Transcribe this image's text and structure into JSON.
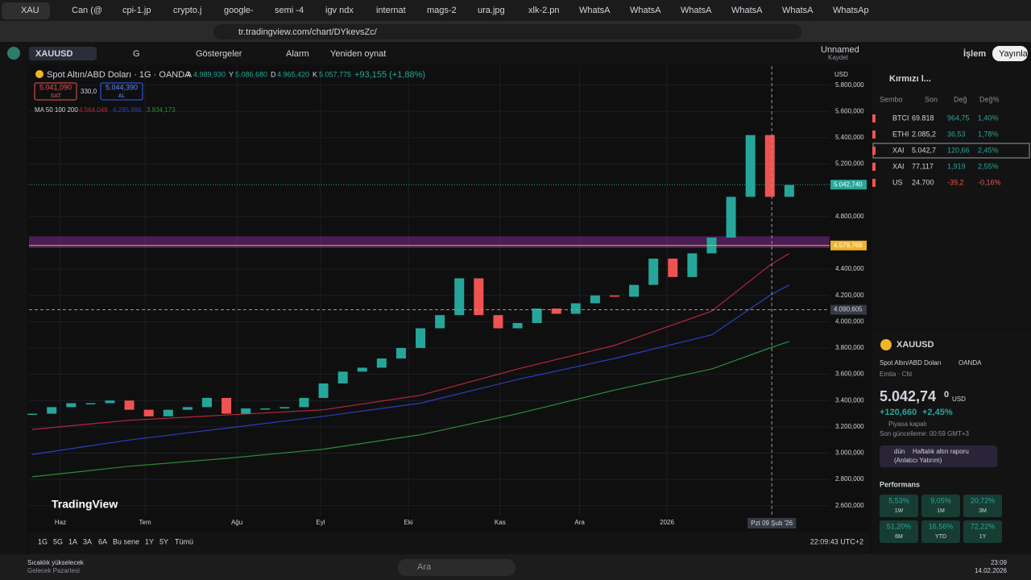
{
  "browser": {
    "tabs": [
      "XAU",
      "Can (@",
      "cpi-1.jp",
      "crypto.j",
      "google-",
      "semi -4",
      "igv ndx",
      "internat",
      "mags-2",
      "ura.jpg",
      "xlk-2.pn",
      "WhatsAp",
      "WhatsAp",
      "WhatsAp",
      "WhatsAp",
      "WhatsAp",
      "WhatsAp"
    ],
    "url": "tr.tradingview.com/chart/DYkevsZc/"
  },
  "toolbar": {
    "symbol": "XAUUSD",
    "interval": "G",
    "indicators": "Göstergeler",
    "alarm": "Alarm",
    "replay": "Yeniden oynat",
    "layout": "Unnamed",
    "save": "Kaydet",
    "trade": "İşlem",
    "publish": "Yayınla"
  },
  "legend": {
    "title": "Spot Altın/ABD Doları · 1G · OANDA",
    "ohlc": [
      {
        "k": "A",
        "v": "4.989,930"
      },
      {
        "k": "Y",
        "v": "5.086,680"
      },
      {
        "k": "D",
        "v": "4.965,420"
      },
      {
        "k": "K",
        "v": "5.057,775"
      }
    ],
    "change": "+93,155 (+1,88%)",
    "sell": "5.041,090",
    "sell_label": "SAT",
    "spread": "330,0",
    "buy": "5.044,390",
    "buy_label": "AL",
    "ma": "MA 50 100 200",
    "ma_values": [
      "4.564,048",
      "4.295,996",
      "3.834,173"
    ],
    "currency": "USD"
  },
  "chart_data": {
    "type": "candlestick",
    "ylim": [
      2525,
      5945
    ],
    "xlim": [
      -0.17,
      41.08
    ],
    "yticks": [
      {
        "value": 5800,
        "label": "5.800,000"
      },
      {
        "value": 5600,
        "label": "5.600,000"
      },
      {
        "value": 5400,
        "label": "5.400,000"
      },
      {
        "value": 5200,
        "label": "5.200,000"
      },
      {
        "value": 4800,
        "label": "4.800,000"
      },
      {
        "value": 4400,
        "label": "4.400,000"
      },
      {
        "value": 4200,
        "label": "4.200,000"
      },
      {
        "value": 4000,
        "label": "4.000,000"
      },
      {
        "value": 3800,
        "label": "3.800,000"
      },
      {
        "value": 3600,
        "label": "3.600,000"
      },
      {
        "value": 3400,
        "label": "3.400,000"
      },
      {
        "value": 3200,
        "label": "3.200,000"
      },
      {
        "value": 3000,
        "label": "3.000,000"
      },
      {
        "value": 2800,
        "label": "2.800,000"
      },
      {
        "value": 2600,
        "label": "2.600,000"
      }
    ],
    "xticks": [
      {
        "value": 1.45,
        "label": "Haz"
      },
      {
        "value": 5.81,
        "label": "Tem"
      },
      {
        "value": 10.54,
        "label": "Ağu"
      },
      {
        "value": 14.85,
        "label": "Eyl"
      },
      {
        "value": 19.38,
        "label": "Eki"
      },
      {
        "value": 24.1,
        "label": "Kas"
      },
      {
        "value": 28.2,
        "label": "Ara"
      },
      {
        "value": 32.7,
        "label": "2026"
      }
    ],
    "up_color": "#26a69a",
    "down_color": "#ef5350",
    "values": [
      3300,
      3350,
      3380,
      3380,
      3400,
      3330,
      3280,
      3330,
      3350,
      3420,
      3300,
      3340,
      3340,
      3350,
      3420,
      3530,
      3620,
      3650,
      3720,
      3800,
      3950,
      4050,
      4330,
      4050,
      3950,
      3990,
      4100,
      4060,
      4140,
      4200,
      4190,
      4280,
      4480,
      4340,
      4520,
      4640,
      4950,
      5420,
      4950,
      5040
    ],
    "series": [
      {
        "name": "MA 50",
        "color": "#b2283a",
        "x": [
          0,
          5,
          10,
          15,
          20,
          25,
          30,
          35,
          38,
          39
        ],
        "values": [
          3180,
          3250,
          3290,
          3330,
          3440,
          3640,
          3820,
          4080,
          4430,
          4520
        ]
      },
      {
        "name": "MA 100",
        "color": "#2a3fbf",
        "x": [
          0,
          5,
          10,
          15,
          20,
          25,
          30,
          35,
          38,
          39
        ],
        "values": [
          2990,
          3100,
          3190,
          3280,
          3380,
          3560,
          3720,
          3900,
          4200,
          4280
        ]
      },
      {
        "name": "MA 200",
        "color": "#2e8b3a",
        "x": [
          0,
          5,
          10,
          15,
          20,
          25,
          30,
          35,
          38,
          39
        ],
        "values": [
          2820,
          2900,
          2960,
          3030,
          3140,
          3300,
          3480,
          3640,
          3800,
          3850
        ]
      }
    ],
    "zone": {
      "values": [
        4560,
        4650
      ],
      "color": "#7b2a8c"
    },
    "price_lines": [
      {
        "value": 5042.74,
        "label": "5.042,740",
        "color": "#26a69a"
      },
      {
        "value": 4579.769,
        "label": "4.579,769",
        "color": "#f0b429"
      }
    ],
    "crosshair": {
      "x": 38.1,
      "x_label": "Pzt 09 Şub '26",
      "y": 4090.605,
      "y_label": "4.090,605"
    },
    "logo": "TradingView"
  },
  "watchlist": {
    "name": "Kırmızı l...",
    "headers": [
      "Sembo",
      "Son",
      "Değ",
      "Değ%"
    ],
    "rows": [
      [
        "BTCI",
        "69.818",
        "964,75",
        "1,40%"
      ],
      [
        "ETHI",
        "2.085,2",
        "36,53",
        "1,78%"
      ],
      [
        "XAI",
        "5.042,7",
        "120,66",
        "2,45%"
      ],
      [
        "XAI",
        "77,117",
        "1,919",
        "2,55%"
      ],
      [
        "US",
        "24.700",
        "-39,2",
        "-0,16%"
      ]
    ]
  },
  "details": {
    "symbol": "XAUUSD",
    "name": "Spot Altın/ABD Doları",
    "exchange": "OANDA",
    "kind": "Emtia · Cfd",
    "price": "5.042,74",
    "price_small": "0",
    "currency": "USD",
    "change": "+120,660",
    "change_pct": "+2,45%",
    "status": "Piyasa kapalı",
    "updated": "Son güncelleme: 00:59 GMT+3",
    "news_when": "dün",
    "news": "Haftalık altın raporu",
    "news_src": "(Anlatıcı Yatırım)",
    "performance": "Performans",
    "perf": [
      [
        "5,53%",
        "1W"
      ],
      [
        "9,05%",
        "1M"
      ],
      [
        "20,72%",
        "3M"
      ],
      [
        "51,20%",
        "6M"
      ],
      [
        "16,56%",
        "YTD"
      ],
      [
        "72,22%",
        "1Y"
      ]
    ]
  },
  "bottom": {
    "ranges": [
      "1G",
      "5G",
      "1A",
      "3A",
      "6A",
      "Bu sene",
      "1Y",
      "5Y",
      "Tümü"
    ],
    "time": "22:09:43 UTC+2"
  },
  "taskbar": {
    "weather": "Sıcaklık yükselecek",
    "weather_sub": "Gelecek Pazartesi",
    "search": "Ara",
    "clock": "23:09",
    "date": "14.02.2026"
  }
}
